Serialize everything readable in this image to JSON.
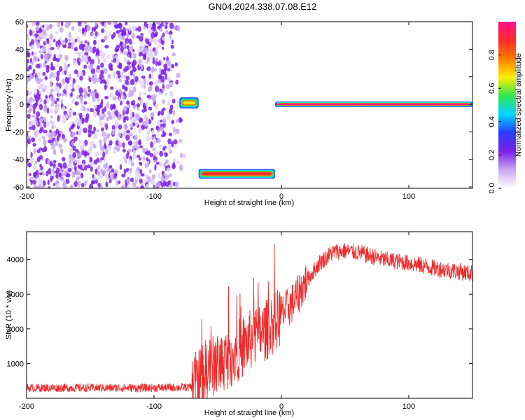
{
  "title": "GN04.2024.338.07.08.E12",
  "colors": {
    "waveform": "#ee2a2a",
    "scatter": "#7a1fe8",
    "colormap": [
      "#ffffff",
      "#c9a7f2",
      "#7b22e6",
      "#2a3cff",
      "#00d6ff",
      "#32e650",
      "#ffef00",
      "#ff7a00",
      "#ff2a2a",
      "#ff0e8c"
    ]
  },
  "chart_data": [
    {
      "type": "heatmap",
      "panel": "spectrogram",
      "xlabel": "Height of straight line (km)",
      "ylabel": "Frequency (Hz)",
      "xlim": [
        -200,
        150
      ],
      "ylim": [
        -61,
        60
      ],
      "xticks": [
        -200,
        -100,
        0,
        100
      ],
      "yticks": [
        -60,
        -40,
        -20,
        0,
        20,
        40,
        60
      ],
      "colorbar": {
        "label": "Normalized spectral amplitude",
        "range": [
          0,
          1
        ],
        "ticks": [
          0.0,
          0.2,
          0.4,
          0.6,
          0.8
        ]
      },
      "features": [
        {
          "x": [
            -200,
            -75
          ],
          "y": [
            -61,
            60
          ],
          "amplitude": 0.1
        },
        {
          "x": [
            -80,
            -65
          ],
          "y": [
            -3,
            5
          ],
          "amplitude": 0.65
        },
        {
          "x": [
            -65,
            -5
          ],
          "y": [
            -54,
            -47
          ],
          "amplitude": 0.85
        },
        {
          "x": [
            -5,
            150
          ],
          "y": [
            -2,
            2
          ],
          "amplitude": 1.0
        }
      ]
    },
    {
      "type": "line",
      "panel": "snr",
      "xlabel": "Height of straight line (km)",
      "ylabel": "SNR (10 * v/v)",
      "xlim": [
        -200,
        150
      ],
      "ylim": [
        0,
        4800
      ],
      "xticks": [
        -200,
        -100,
        0,
        100
      ],
      "yticks": [
        1000,
        2000,
        3000,
        4000
      ],
      "series": [
        {
          "x": [
            -200,
            -150,
            -100,
            -70,
            -60,
            -50,
            -40,
            -30,
            -20,
            -10,
            0,
            10,
            20,
            30,
            40,
            50,
            60,
            80,
            100,
            120,
            150
          ],
          "y": [
            300,
            300,
            300,
            320,
            800,
            1000,
            1200,
            1500,
            1800,
            2000,
            2400,
            2800,
            3400,
            3900,
            4200,
            4250,
            4200,
            4000,
            3900,
            3750,
            3600
          ]
        }
      ]
    }
  ]
}
